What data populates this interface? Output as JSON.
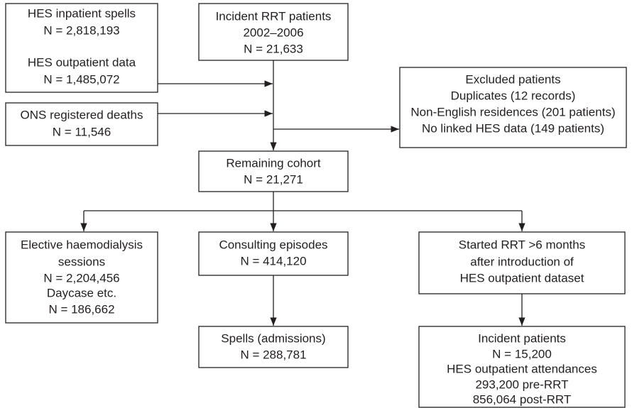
{
  "nodes": [
    {
      "lines": [
        "HES inpatient spells",
        "N = 2,818,193",
        "HES outpatient data",
        "N = 1,485,072"
      ]
    },
    {
      "lines": [
        "Incident RRT patients",
        "2002–2006",
        "N = 21,633"
      ]
    },
    {
      "lines": [
        "ONS registered deaths",
        "N = 11,546"
      ]
    },
    {
      "lines": [
        "Excluded patients",
        "Duplicates (12 records)",
        "Non-English residences (201 patients)",
        "No linked HES data (149 patients)"
      ]
    },
    {
      "lines": [
        "Remaining cohort",
        "N = 21,271"
      ]
    },
    {
      "lines": [
        "Elective haemodialysis",
        "sessions",
        "N = 2,204,456",
        "Daycase etc.",
        "N = 186,662"
      ]
    },
    {
      "lines": [
        "Consulting episodes",
        "N = 414,120"
      ]
    },
    {
      "lines": [
        "Spells (admissions)",
        "N = 288,781"
      ]
    },
    {
      "lines": [
        "Started RRT >6 months",
        "after introduction of",
        "HES outpatient dataset"
      ]
    },
    {
      "lines": [
        "Incident patients",
        "N = 15,200",
        "HES outpatient attendances",
        "293,200 pre-RRT",
        "856,064 post-RRT"
      ]
    }
  ]
}
